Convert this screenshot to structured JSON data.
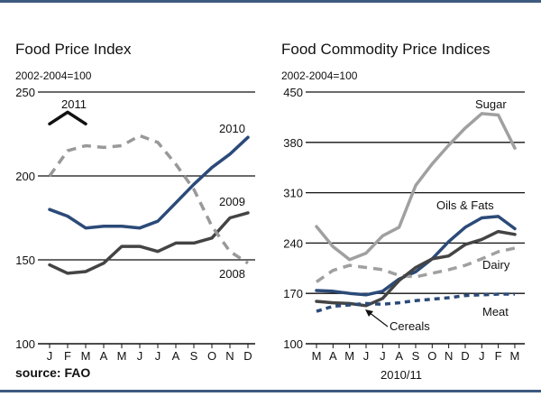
{
  "source": "source: FAO",
  "colors": {
    "rule": "#3e5a7f",
    "grid": "#111111"
  },
  "chart_data": [
    {
      "type": "line",
      "title": "Food Price Index",
      "ylabel": "2002-2004=100",
      "xlabel": "",
      "categories": [
        "J",
        "F",
        "M",
        "A",
        "M",
        "J",
        "J",
        "A",
        "S",
        "O",
        "N",
        "D"
      ],
      "ylim": [
        100,
        250
      ],
      "yticks": [
        100,
        150,
        200,
        250
      ],
      "grid": true,
      "series": [
        {
          "name": "2011",
          "color": "#111111",
          "style": "solid",
          "values": [
            231,
            238,
            231,
            null,
            null,
            null,
            null,
            null,
            null,
            null,
            null,
            null
          ]
        },
        {
          "name": "2010",
          "color": "#2b4a78",
          "style": "solid",
          "values": [
            180,
            176,
            169,
            170,
            170,
            169,
            173,
            184,
            195,
            205,
            213,
            223
          ]
        },
        {
          "name": "2009",
          "color": "#444444",
          "style": "solid",
          "values": [
            147,
            142,
            143,
            148,
            158,
            158,
            155,
            160,
            160,
            163,
            175,
            178
          ]
        },
        {
          "name": "2008",
          "color": "#999999",
          "style": "dashed",
          "values": [
            200,
            215,
            218,
            217,
            218,
            224,
            220,
            207,
            192,
            170,
            155,
            148
          ]
        }
      ]
    },
    {
      "type": "line",
      "title": "Food Commodity Price Indices",
      "ylabel": "2002-2004=100",
      "xlabel": "2010/11",
      "categories": [
        "M",
        "A",
        "M",
        "J",
        "J",
        "A",
        "S",
        "O",
        "N",
        "D",
        "J",
        "F",
        "M"
      ],
      "ylim": [
        100,
        450
      ],
      "yticks": [
        100,
        170,
        240,
        310,
        380,
        450
      ],
      "grid": true,
      "series": [
        {
          "name": "Sugar",
          "color": "#a0a0a0",
          "style": "solid",
          "values": [
            263,
            235,
            217,
            226,
            250,
            262,
            320,
            350,
            376,
            400,
            420,
            418,
            372
          ]
        },
        {
          "name": "Oils & Fats",
          "color": "#2b4a78",
          "style": "solid",
          "values": [
            174,
            173,
            170,
            168,
            173,
            190,
            200,
            218,
            242,
            262,
            275,
            277,
            260
          ]
        },
        {
          "name": "Dairy",
          "color": "#a0a0a0",
          "style": "dashed",
          "values": [
            186,
            202,
            209,
            206,
            203,
            195,
            193,
            198,
            203,
            209,
            218,
            228,
            233
          ]
        },
        {
          "name": "Cereals",
          "color": "#444444",
          "style": "solid",
          "values": [
            159,
            157,
            156,
            153,
            163,
            188,
            206,
            218,
            222,
            238,
            245,
            256,
            252
          ]
        },
        {
          "name": "Meat",
          "color": "#2b4a78",
          "style": "dotted",
          "values": [
            145,
            152,
            154,
            156,
            155,
            157,
            160,
            162,
            164,
            167,
            168,
            169,
            169
          ]
        }
      ]
    }
  ]
}
